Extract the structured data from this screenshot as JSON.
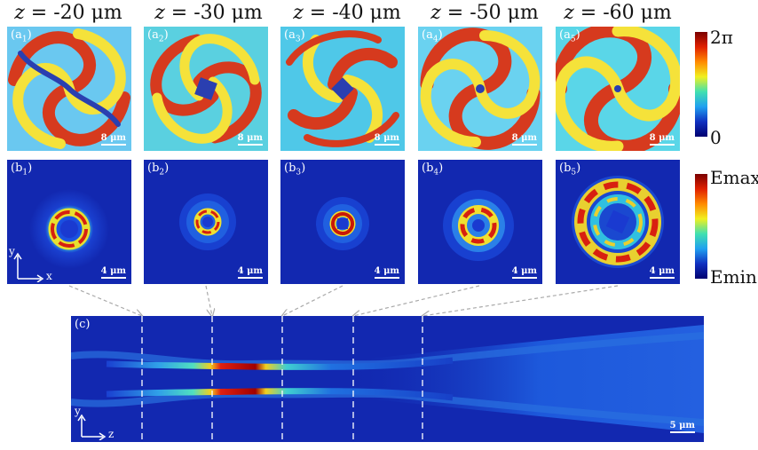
{
  "titles": [
    {
      "var": "z",
      "value": " = -20 μm"
    },
    {
      "var": "z",
      "value": " = -30 μm"
    },
    {
      "var": "z",
      "value": " = -40 μm"
    },
    {
      "var": "z",
      "value": " = -50 μm"
    },
    {
      "var": "z",
      "value": " = -60 μm"
    }
  ],
  "row_a": {
    "labels": [
      {
        "main": "(a",
        "sub": "1",
        "close": ")"
      },
      {
        "main": "(a",
        "sub": "2",
        "close": ")"
      },
      {
        "main": "(a",
        "sub": "3",
        "close": ")"
      },
      {
        "main": "(a",
        "sub": "4",
        "close": ")"
      },
      {
        "main": "(a",
        "sub": "5",
        "close": ")"
      }
    ],
    "scale": "8 μm"
  },
  "row_b": {
    "labels": [
      {
        "main": "(b",
        "sub": "1",
        "close": ")"
      },
      {
        "main": "(b",
        "sub": "2",
        "close": ")"
      },
      {
        "main": "(b",
        "sub": "3",
        "close": ")"
      },
      {
        "main": "(b",
        "sub": "4",
        "close": ")"
      },
      {
        "main": "(b",
        "sub": "5",
        "close": ")"
      }
    ],
    "scale": "4 μm",
    "axis_y": "y",
    "axis_x": "x"
  },
  "colorbar_phase": {
    "max": "2π",
    "min": "0"
  },
  "colorbar_field": {
    "max": "Emax",
    "min": "Emin"
  },
  "panel_c": {
    "label": "(c)",
    "axis_y": "y",
    "axis_z": "z",
    "scale": "5 μm"
  }
}
